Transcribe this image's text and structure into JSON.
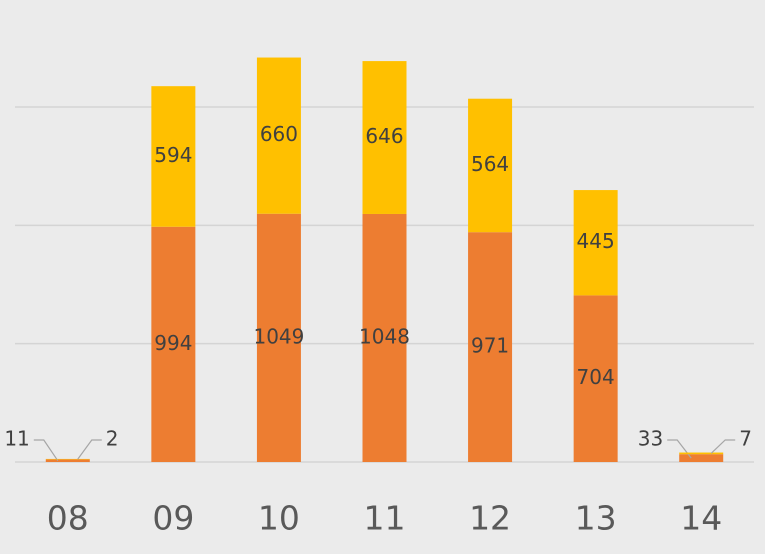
{
  "chart_data": {
    "type": "stacked-bar",
    "categories": [
      "08",
      "09",
      "10",
      "11",
      "12",
      "13",
      "14"
    ],
    "series": [
      {
        "color": "#ED7D31",
        "values": [
          11,
          994,
          1049,
          1048,
          971,
          704,
          33
        ]
      },
      {
        "color": "#FFC000",
        "values": [
          2,
          594,
          660,
          646,
          564,
          445,
          7
        ]
      }
    ],
    "ylim": [
      0,
      1800
    ],
    "yticks": [
      0,
      500,
      1000,
      1500
    ],
    "grid": true
  }
}
